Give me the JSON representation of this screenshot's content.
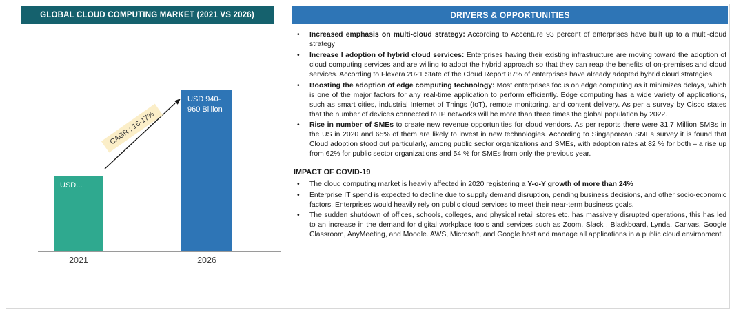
{
  "chart_data": {
    "type": "bar",
    "title": "GLOBAL CLOUD COMPUTING MARKET (2021 VS 2026)",
    "categories": [
      "2021",
      "2026"
    ],
    "values": [
      445,
      950
    ],
    "bar_labels": [
      "USD...",
      "USD 940-960 Billion"
    ],
    "annotation": "CAGR : 16-17%",
    "xlabel": "",
    "ylabel": "",
    "ylim": [
      0,
      1000
    ],
    "unit": "USD Billion",
    "grid": false,
    "legend": false
  },
  "colors": {
    "left_header_bg": "#15616D",
    "right_header_bg": "#2E75B6",
    "bar_2021": "#2FA98F",
    "bar_2026": "#2E75B6",
    "cagr_highlight_bg": "#FBEEC8"
  },
  "left_panel": {
    "title": "GLOBAL CLOUD COMPUTING MARKET (2021 VS 2026)"
  },
  "right_panel": {
    "title": "DRIVERS & OPPORTUNITIES",
    "drivers": [
      {
        "pre": "",
        "bold": "Increased emphasis on multi-cloud strategy:",
        "post": " According to Accenture 93 percent of enterprises have built up to a multi-cloud strategy"
      },
      {
        "pre": "",
        "bold": "Increase I adoption of hybrid cloud services:",
        "post": " Enterprises having their existing infrastructure are moving toward the adoption of cloud computing services and are willing to adopt the hybrid approach so that they can reap the benefits of on-premises and cloud services. According to Flexera 2021 State of the Cloud Report 87% of enterprises have already adopted hybrid cloud strategies."
      },
      {
        "pre": "",
        "bold": "Boosting the adoption of edge computing technology:",
        "post": " Most enterprises focus on edge computing as it minimizes delays, which is one of the major factors for any real-time application to perform efficiently. Edge computing has a wide variety of applications, such as smart cities, industrial Internet of Things (IoT), remote monitoring, and content delivery. As per a survey by Cisco states that the number of devices connected to IP networks will be more than three times the global population by 2022."
      },
      {
        "pre": "",
        "bold": "Rise in number of SMEs",
        "post": " to create new revenue opportunities for cloud vendors. As per reports there were 31.7 Million SMBs in the US in 2020 and 65% of them are likely to invest in new technologies. According to Singaporean SMEs survey it is found that Cloud adoption stood out particularly, among public sector organizations and SMEs, with adoption rates at 82 % for both – a rise up from 62% for public sector organizations and 54 % for SMEs from only the previous year."
      }
    ],
    "covid": {
      "heading": "IMPACT OF COVID-19",
      "bullets": [
        {
          "pre": "The cloud computing market is heavily affected in 2020 registering a ",
          "bold": "Y-o-Y growth of more than 24%",
          "post": ""
        },
        {
          "pre": "Enterprise IT spend is expected to decline due to supply demand disruption, pending business decisions, and other socio-economic factors. Enterprises would heavily rely on public cloud services to meet their near-term business goals.",
          "bold": "",
          "post": ""
        },
        {
          "pre": "The sudden shutdown of offices, schools, colleges, and physical retail stores etc. has massively disrupted operations, this has led to an increase in the demand for digital workplace tools and services such as Zoom, Slack , Blackboard, Lynda, Canvas, Google Classroom, AnyMeeting, and Moodle. AWS, Microsoft, and Google host and manage all applications in a public cloud environment.",
          "bold": "",
          "post": ""
        }
      ]
    }
  }
}
